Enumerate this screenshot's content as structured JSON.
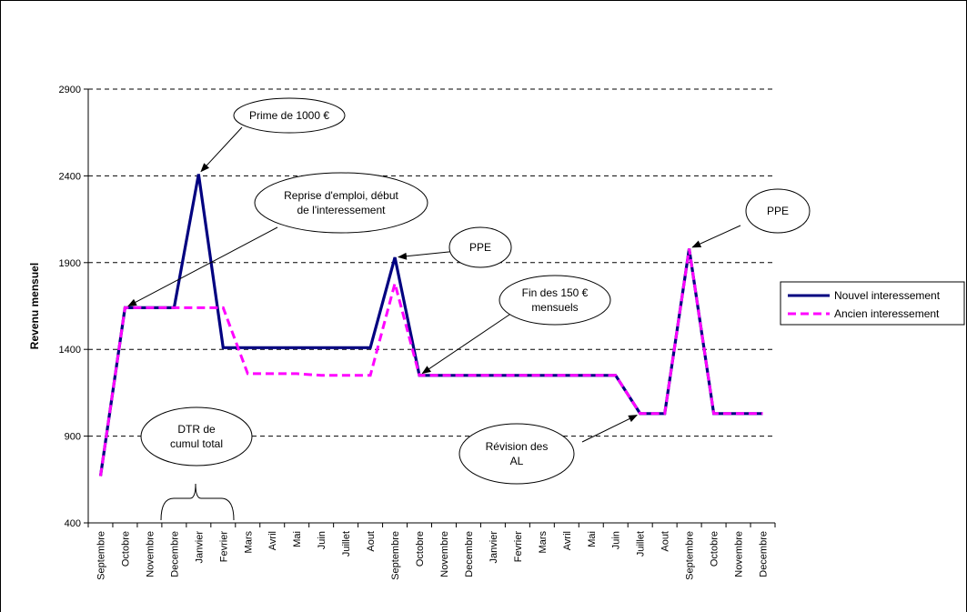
{
  "chart_data": {
    "type": "line",
    "title": "",
    "xlabel": "",
    "ylabel": "Revenu mensuel",
    "ylim": [
      400,
      2900
    ],
    "yticks": [
      400,
      900,
      1400,
      1900,
      2400,
      2900
    ],
    "grid": true,
    "legend_position": "right",
    "categories": [
      "Septembre",
      "Octobre",
      "Novembre",
      "Decembre",
      "Janvier",
      "Fevrier",
      "Mars",
      "Avril",
      "Mai",
      "Juin",
      "Juillet",
      "Aout",
      "Septembre",
      "Octobre",
      "Novembre",
      "Decembre",
      "Janvier",
      "Fevrier",
      "Mars",
      "Avril",
      "Mai",
      "Juin",
      "Juillet",
      "Aout",
      "Septembre",
      "Octobre",
      "Novembre",
      "Decembre"
    ],
    "series": [
      {
        "name": "Nouvel interessement",
        "color": "#000080",
        "style": "solid",
        "values": [
          670,
          1640,
          1640,
          1640,
          2410,
          1410,
          1410,
          1410,
          1410,
          1410,
          1410,
          1410,
          1930,
          1250,
          1250,
          1250,
          1250,
          1250,
          1250,
          1250,
          1250,
          1250,
          1030,
          1030,
          1980,
          1030,
          1030,
          1030
        ]
      },
      {
        "name": "Ancien interessement",
        "color": "#ff00ff",
        "style": "dashed",
        "values": [
          670,
          1640,
          1640,
          1640,
          1640,
          1640,
          1260,
          1260,
          1260,
          1250,
          1250,
          1250,
          1780,
          1250,
          1250,
          1250,
          1250,
          1250,
          1250,
          1250,
          1250,
          1250,
          1030,
          1030,
          1980,
          1030,
          1030,
          1030
        ]
      }
    ],
    "annotations": [
      {
        "text": [
          "Prime de 1000 €"
        ],
        "points_to_index": 4,
        "series": 0
      },
      {
        "text": [
          "Reprise d'emploi, début",
          "de l'interessement"
        ],
        "points_to_index": 1,
        "series": 0
      },
      {
        "text": [
          "PPE"
        ],
        "points_to_index": 12,
        "series": 0
      },
      {
        "text": [
          "Fin des 150 €",
          "mensuels"
        ],
        "points_to_index": 13,
        "series": 0
      },
      {
        "text": [
          "PPE"
        ],
        "points_to_index": 24,
        "series": 0
      },
      {
        "text": [
          "Révision des",
          "AL"
        ],
        "points_to_index": 22,
        "series": 0
      },
      {
        "text": [
          "DTR de",
          "cumul total"
        ],
        "points_to_index": null,
        "series": null
      }
    ]
  }
}
